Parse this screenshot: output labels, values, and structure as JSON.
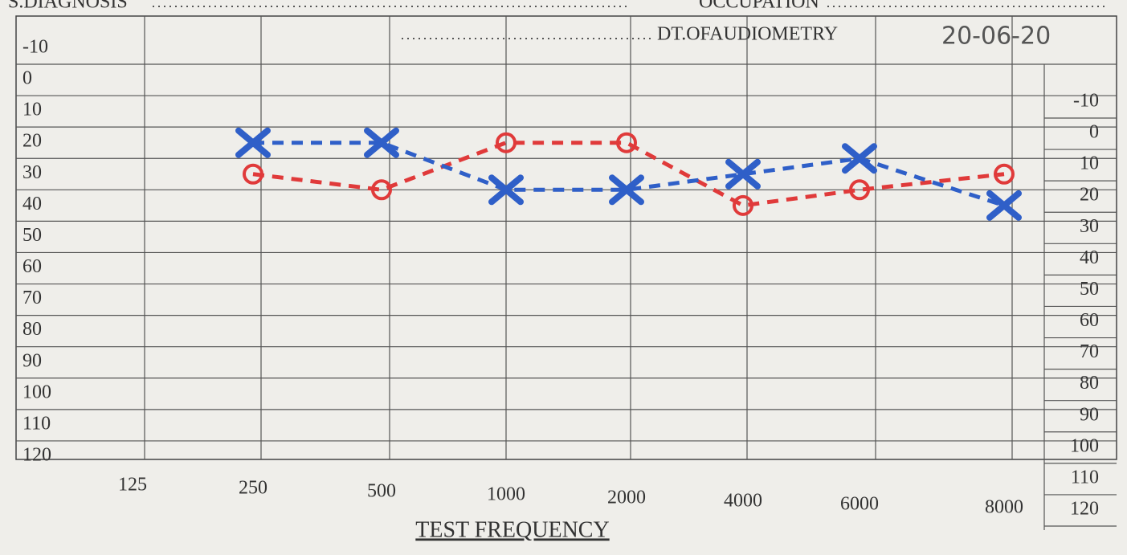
{
  "chart_data": {
    "type": "line",
    "annotations": [
      "S.DIAGNOSIS",
      "OCCUPATION",
      "DT.OFAUDIOMETRY",
      "20-06-20"
    ],
    "xlabel": "TEST FREQUENCY",
    "categories": [
      "125",
      "250",
      "500",
      "1000",
      "2000",
      "4000",
      "6000",
      "8000"
    ],
    "series": [
      {
        "color": "#e03a3a",
        "marker": "o",
        "values": [
          null,
          25,
          30,
          15,
          15,
          35,
          30,
          25
        ]
      },
      {
        "color": "#2f5fc8",
        "marker": "x",
        "values": [
          null,
          15,
          15,
          30,
          30,
          25,
          20,
          35
        ]
      }
    ],
    "ylim": [
      -10,
      120
    ],
    "y_inverted": true,
    "yticks": [
      -10,
      0,
      10,
      20,
      30,
      40,
      50,
      60,
      70,
      80,
      90,
      100,
      110,
      120
    ],
    "y2lim": [
      -10,
      120
    ],
    "y2ticks": [
      -10,
      0,
      10,
      20,
      30,
      40,
      50,
      60,
      70,
      80,
      90,
      100,
      110,
      120
    ],
    "grid": true
  }
}
